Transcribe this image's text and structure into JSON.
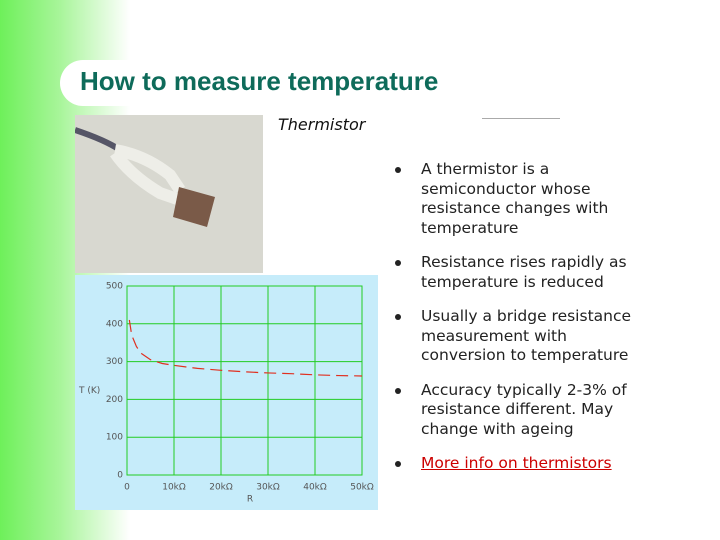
{
  "header": {
    "title": "How to measure temperature",
    "subtitle": "Thermistor"
  },
  "chart_data": {
    "type": "line",
    "y_label": "T (K)",
    "x_label": "R",
    "x": [
      500,
      1000,
      2000,
      3000,
      5000,
      7500,
      10000,
      15000,
      20000,
      25000,
      30000,
      35000,
      40000,
      45000,
      50000
    ],
    "series": [
      {
        "color": "#e03020",
        "values": [
          410,
          370,
          340,
          322,
          305,
          295,
          290,
          282,
          277,
          273,
          270,
          268,
          265,
          263,
          262
        ]
      }
    ],
    "line_style": "dashed",
    "xlim": [
      0,
      50000
    ],
    "ylim": [
      0,
      500
    ],
    "xticks": [
      0,
      {
        "value": 10000,
        "label": "10kΩ"
      },
      {
        "value": 20000,
        "label": "20kΩ"
      },
      {
        "value": 30000,
        "label": "30kΩ"
      },
      {
        "value": 40000,
        "label": "40kΩ"
      },
      {
        "value": 50000,
        "label": "50kΩ"
      }
    ],
    "yticks": [
      0,
      100,
      200,
      300,
      400,
      500
    ],
    "grid": true
  },
  "bullets": [
    {
      "text": "A thermistor is a semiconductor whose resistance changes with temperature"
    },
    {
      "text": "Resistance rises rapidly as temperature is reduced"
    },
    {
      "text": "Usually a bridge resistance measurement with conversion to temperature"
    },
    {
      "text": "Accuracy typically 2-3% of resistance different. May change with ageing"
    },
    {
      "text": "More info on thermistors",
      "link": true
    }
  ]
}
